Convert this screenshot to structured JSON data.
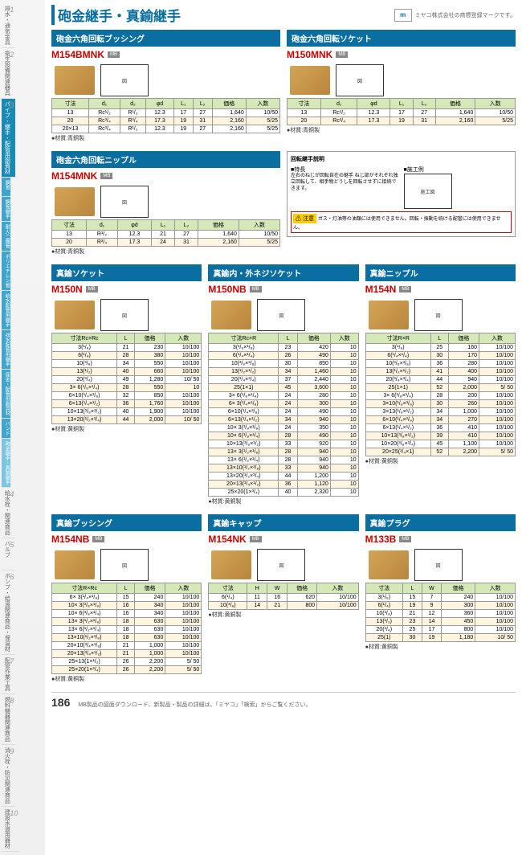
{
  "page_title": "砲金継手・真鍮継手",
  "logo_text": "ミヤコ株式会社の商標登録マークです。",
  "page_number": "186",
  "footer_text": "MB製品の図面ダウンロード、新製品・製品の詳細は、「ミヤコ」「検索」からご覧ください。",
  "sidebar": {
    "items": [
      {
        "num": "1",
        "label": "排水・通気金具"
      },
      {
        "num": "2",
        "label": "衛生設備関連器具"
      },
      {
        "num": "3",
        "label": "パイプ・継手・配管用副資材",
        "active": true
      },
      {
        "num": "4",
        "label": "給水栓・関連商品"
      },
      {
        "num": "5",
        "label": "バルブ"
      },
      {
        "num": "6",
        "label": "ポンプ・給湯関連商品・保温材"
      },
      {
        "num": "7",
        "label": "配管作業工具"
      },
      {
        "num": "8",
        "label": "燃料機器関連商品"
      },
      {
        "num": "9",
        "label": "消火栓・防災関連商品"
      },
      {
        "num": "10",
        "label": "建設水道用器材"
      }
    ],
    "sub_items": [
      "鋼管",
      "鋼管継手",
      "耐火二層管",
      "ポリエチレン管",
      "給水配管用継手",
      "排水配管用継手",
      "座金・配管用副資材",
      "バンド"
    ],
    "current_sub": "砲金継手・真鍮継手"
  },
  "products": {
    "m154bmnk": {
      "title": "砲金六角回転ブッシング",
      "model": "M154BMNK",
      "headers": [
        "寸法",
        "d₁",
        "d₂",
        "φd",
        "L₁",
        "L₂",
        "価格",
        "入数"
      ],
      "rows": [
        [
          "13",
          "Rc¹/₂",
          "R¹/₂",
          "12.3",
          "17",
          "27",
          "1,640",
          "10/50"
        ],
        [
          "20",
          "Rc³/₄",
          "R³/₄",
          "17.3",
          "19",
          "31",
          "2,160",
          "5/25"
        ],
        [
          "20×13",
          "Rc³/₄",
          "R¹/₂",
          "12.3",
          "19",
          "27",
          "2,160",
          "5/25"
        ]
      ],
      "material": "●材質:青銅製"
    },
    "m150mnk": {
      "title": "砲金六角回転ソケット",
      "model": "M150MNK",
      "headers": [
        "寸法",
        "d₁",
        "φd",
        "L₁",
        "L₂",
        "価格",
        "入数"
      ],
      "rows": [
        [
          "13",
          "Rc¹/₂",
          "12.3",
          "17",
          "27",
          "1,640",
          "10/50"
        ],
        [
          "20",
          "Rc³/₄",
          "17.3",
          "19",
          "31",
          "2,160",
          "5/25"
        ]
      ],
      "material": "●材質:青銅製"
    },
    "m154mnk": {
      "title": "砲金六角回転ニップル",
      "model": "M154MNK",
      "headers": [
        "寸法",
        "d₁",
        "φd",
        "L₁",
        "L₂",
        "価格",
        "入数"
      ],
      "rows": [
        [
          "13",
          "R¹/₂",
          "12.3",
          "21",
          "27",
          "1,640",
          "10/50"
        ],
        [
          "20",
          "R³/₄",
          "17.3",
          "24",
          "31",
          "2,160",
          "5/25"
        ]
      ],
      "material": "●材質:青銅製"
    },
    "m150n": {
      "title": "真鍮ソケット",
      "model": "M150N",
      "headers": [
        "寸法Rc×Rc",
        "L",
        "価格",
        "入数"
      ],
      "rows": [
        [
          "3(¹/₈)",
          "21",
          "230",
          "10/100"
        ],
        [
          "6(¹/₄)",
          "28",
          "380",
          "10/100"
        ],
        [
          "10(³/₈)",
          "34",
          "550",
          "10/100"
        ],
        [
          "13(¹/₂)",
          "40",
          "660",
          "10/100"
        ],
        [
          "20(³/₄)",
          "49",
          "1,280",
          "10/ 50"
        ],
        [
          "3× 6(¹/₈×¹/₄)",
          "28",
          "550",
          "10"
        ],
        [
          "6×10(¹/₄×³/₈)",
          "32",
          "850",
          "10/100"
        ],
        [
          "6×13(¹/₄×¹/₂)",
          "36",
          "1,760",
          "10/100"
        ],
        [
          "10×13(³/₈×¹/₂)",
          "40",
          "1,900",
          "10/100"
        ],
        [
          "13×20(¹/₂×³/₄)",
          "44",
          "2,000",
          "10/ 50"
        ]
      ],
      "material": "●材質:黄銅製"
    },
    "m150nb": {
      "title": "真鍮内・外ネジソケット",
      "model": "M150NB",
      "headers": [
        "寸法Rc×R",
        "L",
        "価格",
        "入数"
      ],
      "rows": [
        [
          "3(¹/₈×¹/₈)",
          "23",
          "420",
          "10"
        ],
        [
          "6(¹/₄×¹/₄)",
          "26",
          "490",
          "10"
        ],
        [
          "10(³/₈×³/₈)",
          "30",
          "850",
          "10"
        ],
        [
          "13(¹/₂×¹/₂)",
          "34",
          "1,460",
          "10"
        ],
        [
          "20(³/₄×³/₄)",
          "37",
          "2,440",
          "10"
        ],
        [
          "25(1×1)",
          "45",
          "3,600",
          "10"
        ],
        [
          "3× 6(¹/₈×¹/₄)",
          "24",
          "280",
          "10"
        ],
        [
          "6× 3(¹/₄×¹/₈)",
          "24",
          "300",
          "10"
        ],
        [
          "6×10(¹/₄×³/₈)",
          "24",
          "490",
          "10"
        ],
        [
          "6×13(¹/₄×¹/₂)",
          "34",
          "940",
          "10"
        ],
        [
          "10× 3(³/₈×¹/₈)",
          "24",
          "350",
          "10"
        ],
        [
          "10× 6(³/₈×¹/₄)",
          "28",
          "490",
          "10"
        ],
        [
          "10×13(³/₈×¹/₂)",
          "33",
          "920",
          "10"
        ],
        [
          "13× 3(¹/₂×¹/₈)",
          "28",
          "940",
          "10"
        ],
        [
          "13× 6(¹/₂×¹/₄)",
          "28",
          "940",
          "10"
        ],
        [
          "13×10(¹/₂×³/₈)",
          "33",
          "940",
          "10"
        ],
        [
          "13×20(¹/₂×³/₄)",
          "44",
          "1,200",
          "10"
        ],
        [
          "20×13(³/₄×¹/₂)",
          "36",
          "1,120",
          "10"
        ],
        [
          "25×20(1×³/₄)",
          "40",
          "2,320",
          "10"
        ]
      ],
      "material": "●材質:黄銅製"
    },
    "m154n": {
      "title": "真鍮ニップル",
      "model": "M154N",
      "headers": [
        "寸法R×R",
        "L",
        "価格",
        "入数"
      ],
      "rows": [
        [
          "3(¹/₈)",
          "25",
          "160",
          "10/100"
        ],
        [
          "6(¹/₄×¹/₄)",
          "30",
          "170",
          "10/100"
        ],
        [
          "10(³/₈×³/₈)",
          "36",
          "280",
          "10/100"
        ],
        [
          "13(¹/₂×¹/₂)",
          "41",
          "400",
          "10/100"
        ],
        [
          "20(³/₄×³/₄)",
          "44",
          "940",
          "10/100"
        ],
        [
          "25(1×1)",
          "52",
          "2,000",
          "5/ 50"
        ],
        [
          "3× 6(¹/₈×¹/₄)",
          "28",
          "200",
          "10/100"
        ],
        [
          "3×10(¹/₈×³/₈)",
          "30",
          "260",
          "10/100"
        ],
        [
          "3×13(¹/₈×¹/₂)",
          "34",
          "1,000",
          "10/100"
        ],
        [
          "6×10(¹/₄×³/₈)",
          "34",
          "270",
          "10/100"
        ],
        [
          "6×13(¹/₄×¹/₂)",
          "36",
          "410",
          "10/100"
        ],
        [
          "10×13(³/₈×¹/₂)",
          "39",
          "410",
          "10/100"
        ],
        [
          "10×20(³/₈×³/₄)",
          "45",
          "1,100",
          "10/100"
        ],
        [
          "20×25(³/₄×1)",
          "52",
          "2,200",
          "5/ 50"
        ]
      ],
      "material": "●材質:黄銅製"
    },
    "m154nb": {
      "title": "真鍮ブッシング",
      "model": "M154NB",
      "headers": [
        "寸法R×Rc",
        "L",
        "価格",
        "入数"
      ],
      "rows": [
        [
          "6× 3(¹/₄×¹/₈)",
          "15",
          "240",
          "10/100"
        ],
        [
          "10× 3(³/₈×¹/₈)",
          "16",
          "340",
          "10/100"
        ],
        [
          "10× 6(³/₈×¹/₄)",
          "16",
          "340",
          "10/100"
        ],
        [
          "13× 3(¹/₂×¹/₈)",
          "18",
          "630",
          "10/100"
        ],
        [
          "13× 6(¹/₂×¹/₄)",
          "18",
          "630",
          "10/100"
        ],
        [
          "13×10(¹/₂×³/₈)",
          "18",
          "630",
          "10/100"
        ],
        [
          "20×10(³/₄×³/₈)",
          "21",
          "1,000",
          "10/100"
        ],
        [
          "20×13(³/₄×¹/₂)",
          "21",
          "1,000",
          "10/100"
        ],
        [
          "25×13(1×¹/₂)",
          "26",
          "2,200",
          "5/ 50"
        ],
        [
          "25×20(1×³/₄)",
          "26",
          "2,200",
          "5/ 50"
        ]
      ],
      "material": "●材質:黄銅製"
    },
    "m154nk": {
      "title": "真鍮キャップ",
      "model": "M154NK",
      "headers": [
        "寸法",
        "H",
        "W",
        "価格",
        "入数"
      ],
      "rows": [
        [
          "6(¹/₄)",
          "11",
          "16",
          "620",
          "10/100"
        ],
        [
          "10(³/₈)",
          "14",
          "21",
          "800",
          "10/100"
        ]
      ],
      "material": "●材質:黄銅製"
    },
    "m133b": {
      "title": "真鍮プラグ",
      "model": "M133B",
      "headers": [
        "寸法",
        "L",
        "W",
        "価格",
        "入数"
      ],
      "rows": [
        [
          "3(¹/₈)",
          "15",
          "7",
          "240",
          "10/100"
        ],
        [
          "6(¹/₄)",
          "19",
          "9",
          "300",
          "10/100"
        ],
        [
          "10(³/₈)",
          "21",
          "12",
          "360",
          "10/100"
        ],
        [
          "13(¹/₂)",
          "23",
          "14",
          "450",
          "10/100"
        ],
        [
          "20(³/₄)",
          "25",
          "17",
          "800",
          "10/100"
        ],
        [
          "25(1)",
          "30",
          "19",
          "1,180",
          "10/ 50"
        ]
      ],
      "material": "●材質:黄銅製"
    }
  },
  "info_box": {
    "title": "回転継手説明",
    "feature_label": "■特長",
    "example_label": "■施工例",
    "feature_text": "左右のねじが回転自在の継手 ねじ部がそれぞれ独立回転して、相手物どうしを回転させずに接続できます。",
    "caution_label": "注意",
    "caution_text": "ガス・灯油等の油類には使用できません。回転・振動を続ける配管には使用できません。"
  }
}
